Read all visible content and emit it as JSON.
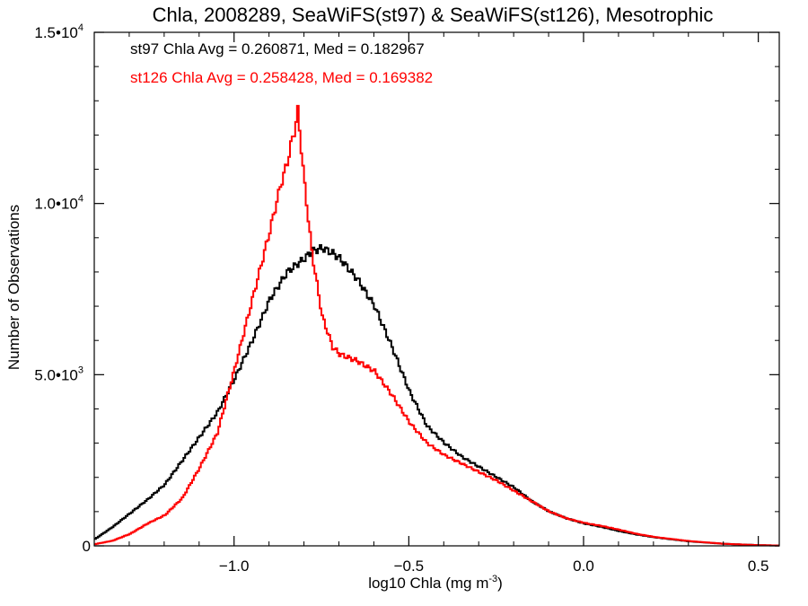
{
  "chart_data": {
    "type": "line",
    "title": "Chla, 2008289, SeaWiFS(st97) & SeaWiFS(st126), Mesotrophic",
    "xlabel": "log10 Chla (mg m",
    "xlabel_sup": "-3",
    "xlabel_tail": ")",
    "ylabel": "Number of Observations",
    "xlim": [
      -1.4,
      0.56
    ],
    "ylim": [
      0,
      15000
    ],
    "x_ticks": [
      {
        "value": -1.0,
        "label": "−1.0"
      },
      {
        "value": -0.5,
        "label": "−0.5"
      },
      {
        "value": 0.0,
        "label": "0.0"
      },
      {
        "value": 0.5,
        "label": "0.5"
      }
    ],
    "y_ticks": [
      {
        "value": 0,
        "label": "0",
        "sup": ""
      },
      {
        "value": 5000,
        "label": "5.0•10",
        "sup": "3"
      },
      {
        "value": 10000,
        "label": "1.0•10",
        "sup": "4"
      },
      {
        "value": 15000,
        "label": "1.5•10",
        "sup": "4"
      }
    ],
    "annotations": [
      {
        "text": "st97 Chla Avg = 0.260871, Med = 0.182967",
        "color": "#000000"
      },
      {
        "text": "st126 Chla Avg = 0.258428, Med = 0.169382",
        "color": "#ff0000"
      }
    ],
    "series": [
      {
        "color": "#000000",
        "x": [
          -1.4,
          -1.35,
          -1.3,
          -1.25,
          -1.2,
          -1.15,
          -1.1,
          -1.05,
          -1.0,
          -0.95,
          -0.9,
          -0.85,
          -0.8,
          -0.78,
          -0.75,
          -0.72,
          -0.7,
          -0.65,
          -0.6,
          -0.55,
          -0.5,
          -0.45,
          -0.4,
          -0.35,
          -0.3,
          -0.25,
          -0.2,
          -0.15,
          -0.1,
          -0.05,
          0.0,
          0.05,
          0.1,
          0.15,
          0.2,
          0.3,
          0.4,
          0.5,
          0.56
        ],
        "y": [
          200,
          550,
          950,
          1350,
          1800,
          2500,
          3200,
          3900,
          4900,
          6000,
          7200,
          8000,
          8400,
          8600,
          8700,
          8550,
          8400,
          7800,
          7000,
          5800,
          4500,
          3500,
          3000,
          2600,
          2300,
          2000,
          1700,
          1300,
          1000,
          800,
          650,
          550,
          430,
          330,
          250,
          130,
          60,
          20,
          10
        ]
      },
      {
        "color": "#ff0000",
        "x": [
          -1.4,
          -1.35,
          -1.3,
          -1.25,
          -1.2,
          -1.15,
          -1.1,
          -1.05,
          -1.0,
          -0.95,
          -0.9,
          -0.87,
          -0.85,
          -0.84,
          -0.83,
          -0.82,
          -0.8,
          -0.78,
          -0.75,
          -0.72,
          -0.7,
          -0.65,
          -0.6,
          -0.55,
          -0.5,
          -0.45,
          -0.4,
          -0.35,
          -0.3,
          -0.25,
          -0.2,
          -0.15,
          -0.1,
          -0.05,
          0.0,
          0.05,
          0.1,
          0.15,
          0.2,
          0.3,
          0.4,
          0.5,
          0.56
        ],
        "y": [
          50,
          150,
          350,
          650,
          900,
          1400,
          2300,
          3300,
          5200,
          7200,
          9200,
          10500,
          11200,
          11700,
          12100,
          12700,
          10500,
          8600,
          6700,
          5800,
          5600,
          5400,
          5100,
          4400,
          3600,
          3000,
          2650,
          2400,
          2150,
          1900,
          1600,
          1300,
          1000,
          800,
          670,
          580,
          470,
          350,
          260,
          140,
          60,
          20,
          10
        ]
      }
    ]
  }
}
